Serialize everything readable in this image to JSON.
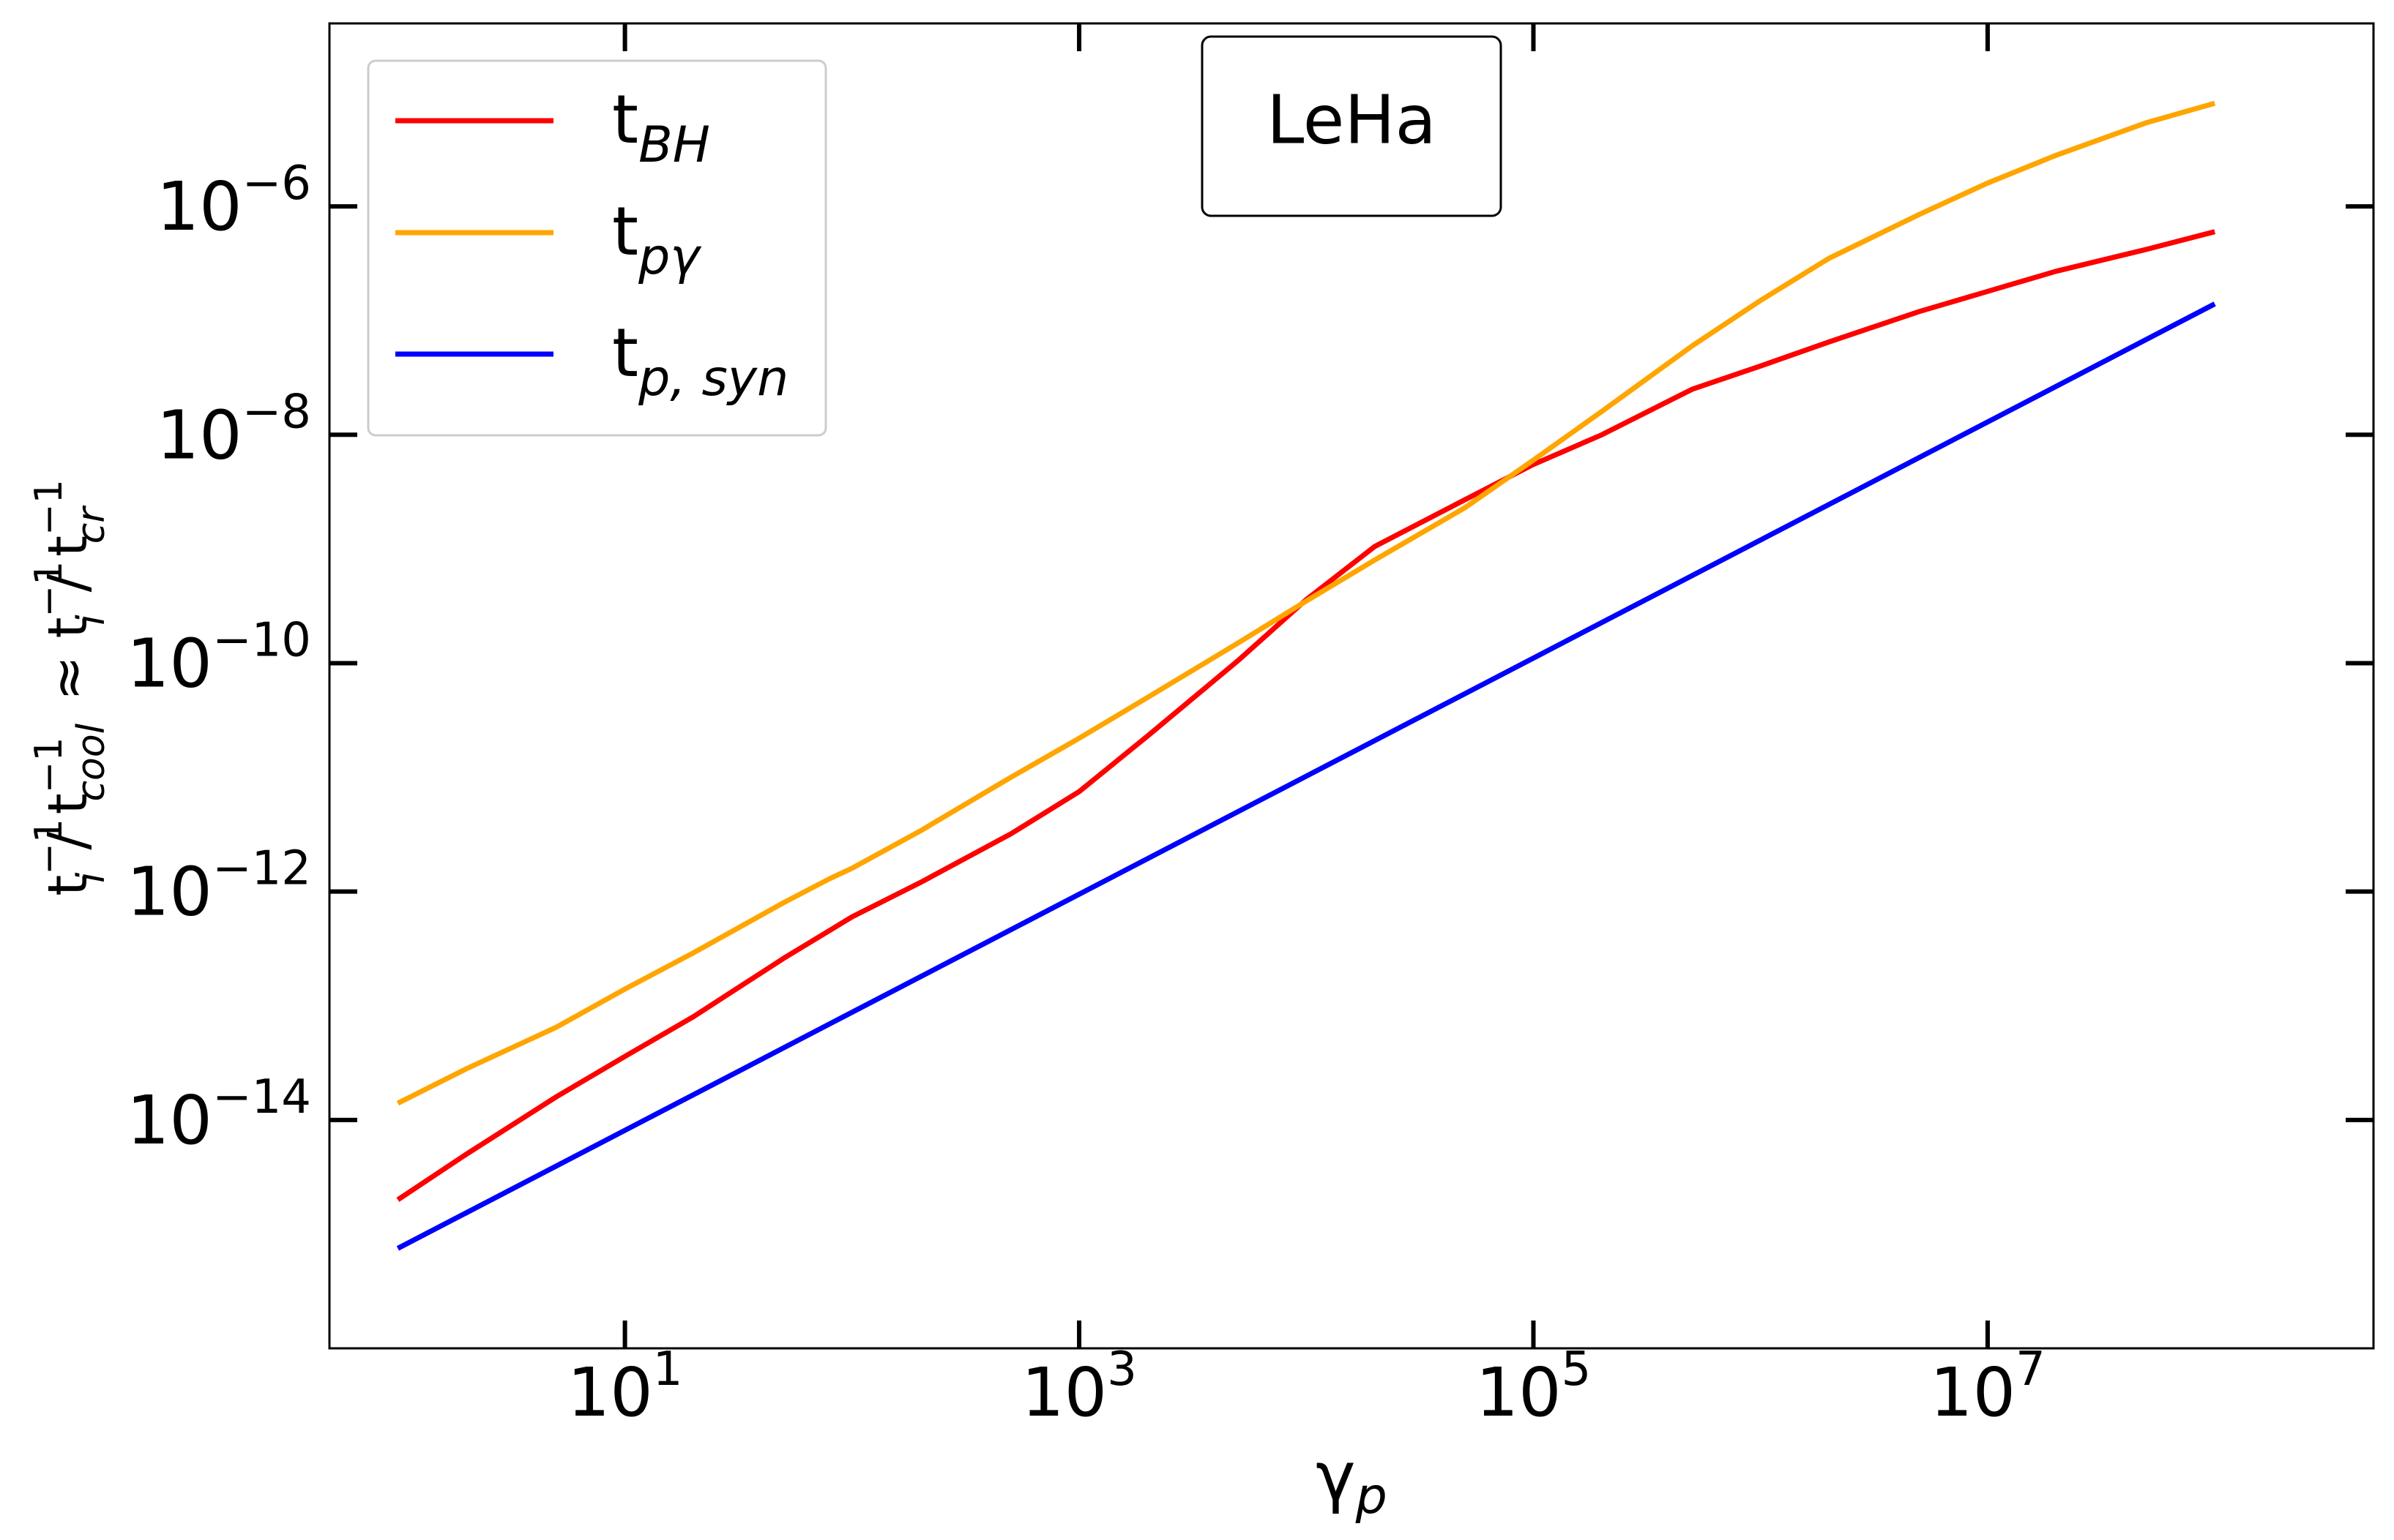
{
  "chart_data": {
    "type": "line",
    "scale": {
      "x": "log",
      "y": "log"
    },
    "xlim": [
      0.5,
      500000000
    ],
    "ylim": [
      1e-16,
      4e-05
    ],
    "title": "",
    "xlabel": {
      "base": "γ",
      "sub": "p"
    },
    "ylabel": [
      {
        "t": "t",
        "sup": "−1",
        "sub": "i"
      },
      {
        "t": " / "
      },
      {
        "t": "t",
        "sup": "−1",
        "sub": "cool"
      },
      {
        "t": " ≈  "
      },
      {
        "t": "t",
        "sup": "−1",
        "sub": "i"
      },
      {
        "t": " / "
      },
      {
        "t": "t",
        "sup": "−1",
        "sub": "cr"
      }
    ],
    "x_ticks": [
      {
        "value": 10,
        "base": "10",
        "exp": "1"
      },
      {
        "value": 1000,
        "base": "10",
        "exp": "3"
      },
      {
        "value": 100000,
        "base": "10",
        "exp": "5"
      },
      {
        "value": 10000000,
        "base": "10",
        "exp": "7"
      }
    ],
    "y_ticks": [
      {
        "value": 1e-14,
        "base": "10",
        "exp": "−14"
      },
      {
        "value": 1e-12,
        "base": "10",
        "exp": "−12"
      },
      {
        "value": 1e-10,
        "base": "10",
        "exp": "−10"
      },
      {
        "value": 1e-08,
        "base": "10",
        "exp": "−8"
      },
      {
        "value": 1e-06,
        "base": "10",
        "exp": "−6"
      }
    ],
    "annotation": "LeHa",
    "legend_position": "top-left",
    "grid": false,
    "series": [
      {
        "name": {
          "base": "t",
          "sub": "BH"
        },
        "color": "#ff0000",
        "x": [
          1,
          2,
          5,
          10,
          20,
          50,
          100,
          200,
          500,
          1000,
          2000,
          5000,
          10000,
          20000,
          50000,
          100000,
          200000,
          500000,
          1000000,
          2000000,
          5000000,
          10000000,
          20000000,
          50000000,
          100000000
        ],
        "y": [
          2e-15,
          5e-15,
          1.6e-14,
          3.6e-14,
          8e-14,
          2.6e-13,
          6e-13,
          1.2e-12,
          3.2e-12,
          7.5e-12,
          2.3e-11,
          1.05e-10,
          3.6e-10,
          1.05e-09,
          2.7e-09,
          5.5e-09,
          1e-08,
          2.5e-08,
          4e-08,
          6.5e-08,
          1.2e-07,
          1.8e-07,
          2.7e-07,
          4.2e-07,
          6e-07
        ]
      },
      {
        "name": {
          "base": "t",
          "sub": "pγ"
        },
        "color": "#ffa500",
        "x": [
          1,
          2,
          5,
          10,
          20,
          50,
          80,
          100,
          200,
          500,
          1000,
          2000,
          5000,
          10000,
          20000,
          50000,
          100000,
          200000,
          500000,
          1000000,
          2000000,
          5000000,
          10000000,
          20000000,
          50000000,
          100000000
        ],
        "y": [
          1.4e-14,
          2.8e-14,
          6.5e-14,
          1.4e-13,
          2.9e-13,
          8e-13,
          1.3e-12,
          1.6e-12,
          3.4e-12,
          1e-11,
          2.2e-11,
          5e-11,
          1.5e-10,
          3.5e-10,
          8e-10,
          2.3e-09,
          6e-09,
          1.6e-08,
          6e-08,
          1.5e-07,
          3.5e-07,
          8.5e-07,
          1.6e-06,
          2.8e-06,
          5.4e-06,
          8e-06
        ]
      },
      {
        "name": {
          "base": "t",
          "sub": "p, syn"
        },
        "color": "#0000ff",
        "x": [
          1,
          100000000
        ],
        "y": [
          7.5e-16,
          1.4e-07
        ]
      }
    ]
  }
}
